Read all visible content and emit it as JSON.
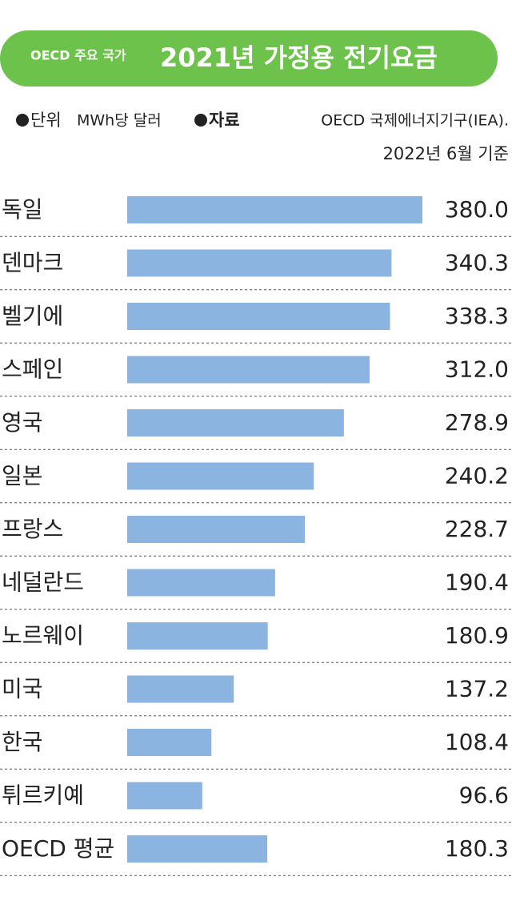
{
  "chart_data": {
    "type": "hbar",
    "title_prefix": "OECD 주요 국가",
    "title": "2021년 가정용 전기요금",
    "unit_label": "단위",
    "unit": "MWh당 달러",
    "source_label": "자료",
    "source": "OECD 국제에너지기구(IEA).",
    "source_date": "2022년 6월 기준",
    "categories": [
      "독일",
      "덴마크",
      "벨기에",
      "스페인",
      "영국",
      "일본",
      "프랑스",
      "네덜란드",
      "노르웨이",
      "미국",
      "한국",
      "튀르키예",
      "OECD 평균"
    ],
    "values": [
      380.0,
      340.3,
      338.3,
      312.0,
      278.9,
      240.2,
      228.7,
      190.4,
      180.9,
      137.2,
      108.4,
      96.6,
      180.3
    ],
    "value_labels": [
      "380.0",
      "340.3",
      "338.3",
      "312.0",
      "278.9",
      "240.2",
      "228.7",
      "190.4",
      "180.9",
      "137.2",
      "108.4",
      "96.6",
      "180.3"
    ],
    "color": "#8cb4e0",
    "title_color": "#6cc24a"
  }
}
